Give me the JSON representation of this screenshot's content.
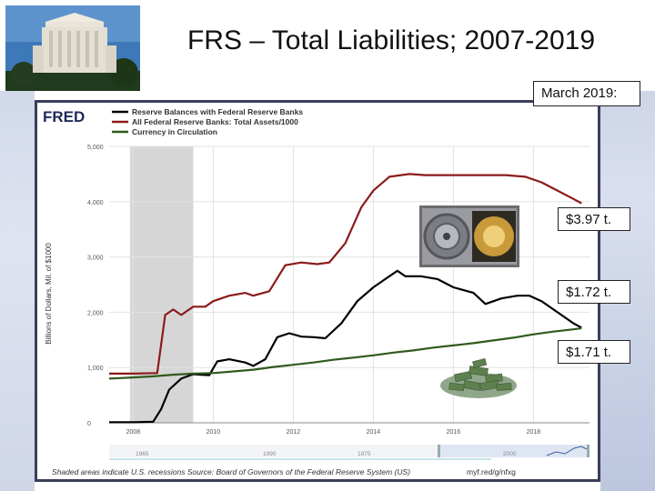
{
  "title": "FRS – Total Liabilities; 2007-2019",
  "callouts": {
    "date_label": "March 2019:",
    "total_assets": "$3.97 t.",
    "reserve_balances": "$1.72 t.",
    "currency": "$1.71 t."
  },
  "fred": {
    "logo": "FRED",
    "source_note": "Shaded areas indicate U.S. recessions Source: Board of Governors of the Federal Reserve System (US)",
    "short_link": "myf.red/g/nfxg",
    "brush_labels": [
      "1965",
      "1990",
      "1975",
      "2000"
    ]
  },
  "chart_data": {
    "type": "line",
    "ylabel": "Billions of Dollars, Mil. of $1000",
    "ylim": [
      0,
      5000
    ],
    "yticks": [
      0,
      1000,
      2000,
      3000,
      4000,
      5000
    ],
    "ytick_labels": [
      "0",
      "1,000",
      "2,000",
      "3,000",
      "4,000",
      "5,000"
    ],
    "xlim": [
      2007.4,
      2019.4
    ],
    "xticks": [
      2008,
      2010,
      2012,
      2014,
      2016,
      2018
    ],
    "recession": [
      2007.92,
      2009.5
    ],
    "series": [
      {
        "name": "Reserve Balances with Federal Reserve Banks",
        "color": "#000000",
        "x": [
          2007.4,
          2008.0,
          2008.5,
          2008.7,
          2008.9,
          2009.2,
          2009.5,
          2009.7,
          2009.9,
          2010.1,
          2010.4,
          2010.8,
          2011.0,
          2011.3,
          2011.6,
          2011.9,
          2012.2,
          2012.5,
          2012.8,
          2013.2,
          2013.6,
          2014.0,
          2014.3,
          2014.6,
          2014.8,
          2015.2,
          2015.6,
          2016.0,
          2016.5,
          2016.8,
          2017.2,
          2017.6,
          2017.9,
          2018.2,
          2018.6,
          2019.0,
          2019.2
        ],
        "y": [
          10,
          10,
          20,
          250,
          600,
          800,
          880,
          870,
          860,
          1110,
          1150,
          1090,
          1030,
          1150,
          1550,
          1620,
          1560,
          1550,
          1530,
          1800,
          2200,
          2450,
          2600,
          2750,
          2650,
          2650,
          2600,
          2450,
          2350,
          2150,
          2250,
          2300,
          2300,
          2200,
          2000,
          1800,
          1720
        ]
      },
      {
        "name": "All Federal Reserve Banks: Total Assets/1000",
        "color": "#8b1b1b",
        "x": [
          2007.4,
          2008.0,
          2008.6,
          2008.8,
          2009.0,
          2009.2,
          2009.5,
          2009.8,
          2010.0,
          2010.4,
          2010.8,
          2011.0,
          2011.4,
          2011.8,
          2012.2,
          2012.6,
          2012.9,
          2013.3,
          2013.7,
          2014.0,
          2014.4,
          2014.9,
          2015.3,
          2015.8,
          2016.3,
          2016.8,
          2017.3,
          2017.8,
          2018.2,
          2018.6,
          2019.0,
          2019.2
        ],
        "y": [
          890,
          890,
          900,
          1950,
          2050,
          1950,
          2100,
          2100,
          2200,
          2300,
          2350,
          2300,
          2380,
          2850,
          2900,
          2870,
          2900,
          3250,
          3900,
          4200,
          4450,
          4500,
          4480,
          4480,
          4480,
          4480,
          4480,
          4450,
          4350,
          4200,
          4050,
          3970
        ]
      },
      {
        "name": "Currency in Circulation",
        "color": "#2f5a1c",
        "x": [
          2007.4,
          2008.0,
          2008.5,
          2009.0,
          2009.5,
          2010.0,
          2010.5,
          2011.0,
          2011.5,
          2012.0,
          2012.5,
          2013.0,
          2013.5,
          2014.0,
          2014.5,
          2015.0,
          2015.5,
          2016.0,
          2016.5,
          2017.0,
          2017.5,
          2018.0,
          2018.5,
          2019.0,
          2019.2
        ],
        "y": [
          800,
          820,
          840,
          870,
          890,
          900,
          930,
          960,
          1010,
          1050,
          1090,
          1140,
          1180,
          1220,
          1270,
          1310,
          1360,
          1400,
          1440,
          1490,
          1540,
          1600,
          1650,
          1690,
          1710
        ]
      }
    ]
  }
}
